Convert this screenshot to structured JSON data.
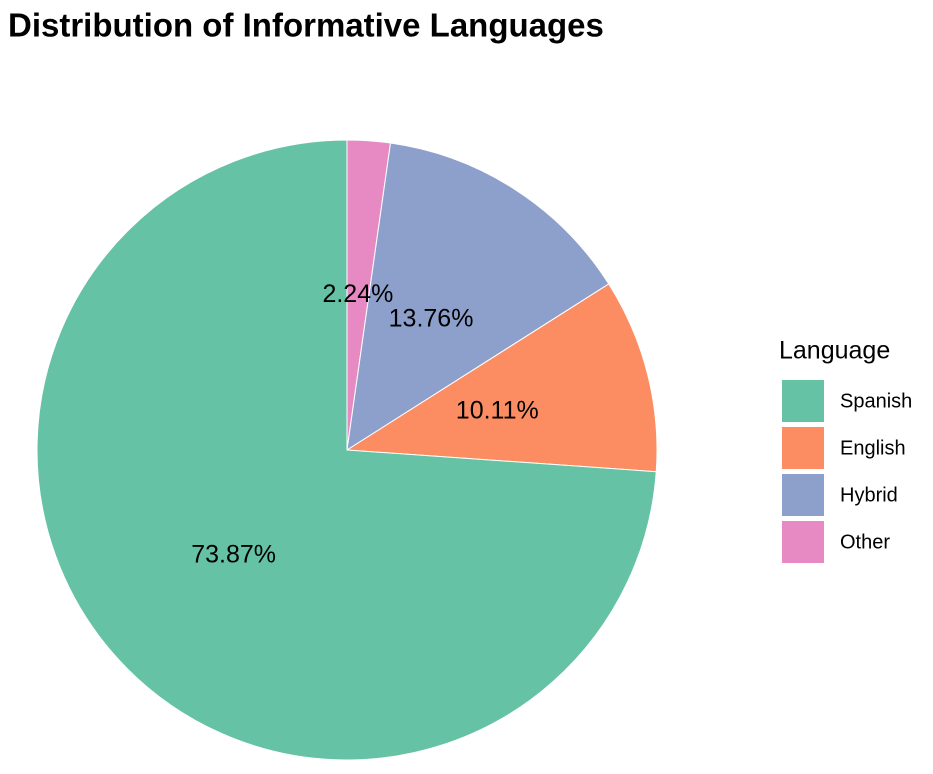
{
  "chart_data": {
    "type": "pie",
    "title": "Distribution of Informative Languages",
    "legend_title": "Language",
    "categories": [
      "Spanish",
      "English",
      "Hybrid",
      "Other"
    ],
    "values": [
      73.87,
      10.11,
      13.76,
      2.24
    ],
    "value_labels": [
      "73.87%",
      "10.11%",
      "13.76%",
      "2.24%"
    ],
    "colors": [
      "#66c2a5",
      "#fc8d62",
      "#8da0cb",
      "#e78ac3"
    ],
    "legend": "right"
  }
}
